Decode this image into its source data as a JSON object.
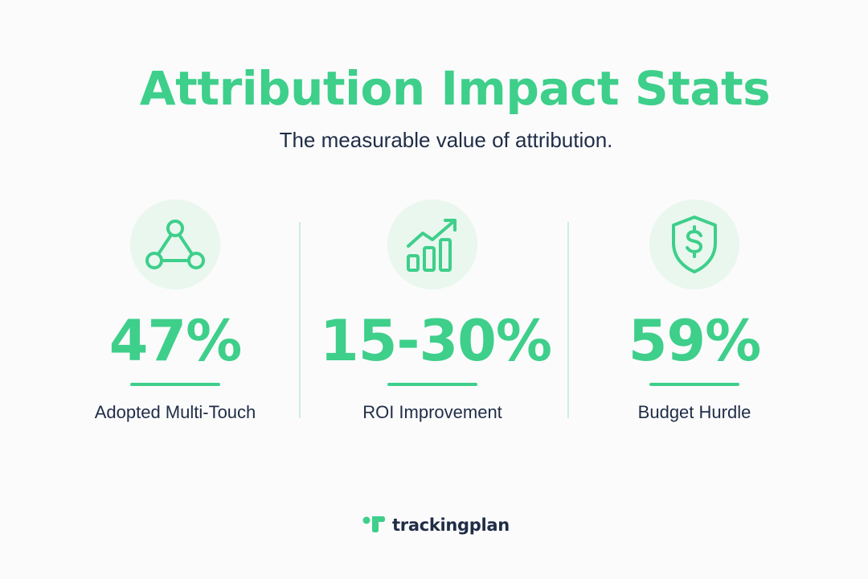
{
  "header": {
    "title": "Attribution Impact Stats",
    "subtitle": "The measurable value of attribution."
  },
  "stats": [
    {
      "icon": "network-triangle-icon",
      "value": "47%",
      "label": "Adopted Multi-Touch"
    },
    {
      "icon": "growth-chart-icon",
      "value": "15-30%",
      "label": "ROI Improvement"
    },
    {
      "icon": "shield-dollar-icon",
      "value": "59%",
      "label": "Budget Hurdle"
    }
  ],
  "footer": {
    "brand_name": "trackingplan",
    "brand_icon": "trackingplan-logo-icon"
  },
  "colors": {
    "accent": "#3ecf8a",
    "icon_bg": "#e9f7ef",
    "text_dark": "#1f2d46",
    "divider": "#cdeedd",
    "background": "#fbfbfc"
  }
}
